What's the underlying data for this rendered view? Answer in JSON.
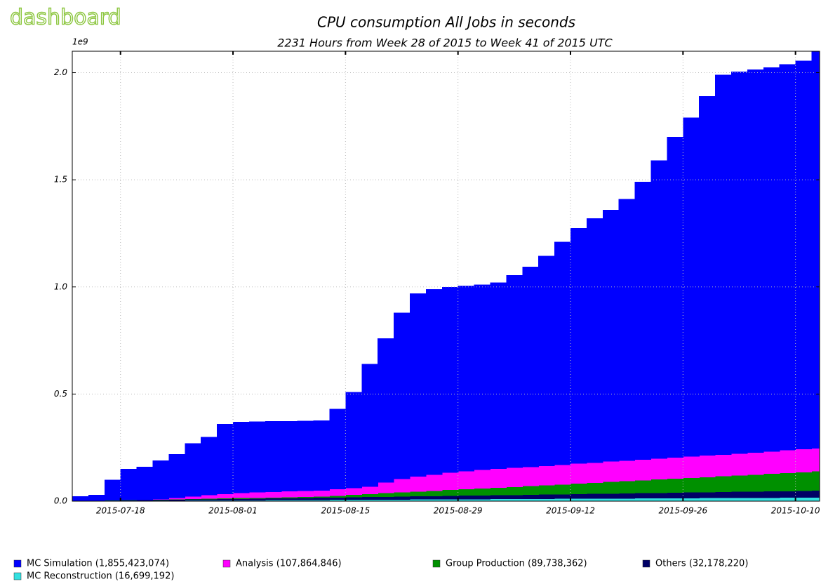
{
  "logo": "dashboard",
  "chart_data": {
    "type": "stacked_step_area",
    "title": "CPU consumption All Jobs in seconds",
    "subtitle": "2231 Hours from Week 28 of 2015 to Week 41 of 2015 UTC",
    "y_offset_label": "1e9",
    "x": [
      "2015-07-12",
      "2015-07-14",
      "2015-07-16",
      "2015-07-18",
      "2015-07-20",
      "2015-07-22",
      "2015-07-24",
      "2015-07-26",
      "2015-07-28",
      "2015-07-30",
      "2015-08-01",
      "2015-08-03",
      "2015-08-05",
      "2015-08-07",
      "2015-08-09",
      "2015-08-11",
      "2015-08-13",
      "2015-08-15",
      "2015-08-17",
      "2015-08-19",
      "2015-08-21",
      "2015-08-23",
      "2015-08-25",
      "2015-08-27",
      "2015-08-29",
      "2015-08-31",
      "2015-09-02",
      "2015-09-04",
      "2015-09-06",
      "2015-09-08",
      "2015-09-10",
      "2015-09-12",
      "2015-09-14",
      "2015-09-16",
      "2015-09-18",
      "2015-09-20",
      "2015-09-22",
      "2015-09-24",
      "2015-09-26",
      "2015-09-28",
      "2015-09-30",
      "2015-10-02",
      "2015-10-04",
      "2015-10-06",
      "2015-10-08",
      "2015-10-10",
      "2015-10-12"
    ],
    "xlim": [
      "2015-07-12",
      "2015-10-13"
    ],
    "xticks": [
      "2015-07-18",
      "2015-08-01",
      "2015-08-15",
      "2015-08-29",
      "2015-09-12",
      "2015-09-26",
      "2015-10-10"
    ],
    "ylim": [
      0,
      2.1
    ],
    "yticks": [
      {
        "value": 0,
        "label": "0.0"
      },
      0.5,
      {
        "value": 1,
        "label": "1.0"
      },
      1.5,
      {
        "value": 2,
        "label": "2.0"
      }
    ],
    "grid": true,
    "series": [
      {
        "name": "MC Simulation (1,855,423,074)",
        "color": "#0000ff",
        "values": [
          0.023,
          0.0286,
          0.0972,
          0.1458,
          0.1544,
          0.181,
          0.2056,
          0.2482,
          0.2728,
          0.3274,
          0.332,
          0.3316,
          0.3302,
          0.3288,
          0.3274,
          0.3261,
          0.375,
          0.45,
          0.5729,
          0.6729,
          0.7768,
          0.8552,
          0.8667,
          0.8681,
          0.8656,
          0.865,
          0.8694,
          0.8999,
          0.9353,
          0.9804,
          1.0405,
          1.1005,
          1.1407,
          1.1757,
          1.2209,
          1.2959,
          1.3911,
          1.4964,
          1.5815,
          1.6778,
          1.773,
          1.7832,
          1.7885,
          1.7936,
          1.8029,
          1.8131,
          1.855
        ]
      },
      {
        "name": "Analysis (107,864,846)",
        "color": "#ff00ff",
        "values": [
          0,
          0,
          0,
          0,
          0,
          0.002,
          0.006,
          0.012,
          0.016,
          0.02,
          0.024,
          0.025,
          0.026,
          0.027,
          0.028,
          0.029,
          0.03,
          0.031,
          0.034,
          0.05,
          0.062,
          0.07,
          0.075,
          0.08,
          0.084,
          0.086,
          0.088,
          0.089,
          0.09,
          0.091,
          0.092,
          0.093,
          0.094,
          0.095,
          0.096,
          0.097,
          0.098,
          0.099,
          0.1,
          0.1,
          0.101,
          0.102,
          0.103,
          0.104,
          0.106,
          0.107,
          0.1079
        ]
      },
      {
        "name": "Group Production (89,738,362)",
        "color": "#009000",
        "values": [
          0,
          0.0003,
          0.0007,
          0.001,
          0.0014,
          0.0017,
          0.002,
          0.0024,
          0.0027,
          0.0031,
          0.0034,
          0.0037,
          0.0041,
          0.0044,
          0.0048,
          0.005,
          0.008,
          0.011,
          0.014,
          0.017,
          0.02,
          0.0225,
          0.025,
          0.0275,
          0.03,
          0.0325,
          0.035,
          0.0375,
          0.04,
          0.0429,
          0.0457,
          0.0486,
          0.0514,
          0.0543,
          0.0571,
          0.06,
          0.0627,
          0.0654,
          0.0682,
          0.0709,
          0.0736,
          0.0763,
          0.079,
          0.0818,
          0.0845,
          0.0872,
          0.0897
        ]
      },
      {
        "name": "Others (32,178,220)",
        "color": "#000066",
        "values": [
          0,
          0.0007,
          0.0014,
          0.0021,
          0.0028,
          0.0035,
          0.0042,
          0.0049,
          0.0056,
          0.0063,
          0.007,
          0.0077,
          0.0084,
          0.0091,
          0.0098,
          0.0105,
          0.0112,
          0.0119,
          0.0126,
          0.0133,
          0.014,
          0.0147,
          0.0154,
          0.0161,
          0.0168,
          0.0175,
          0.0182,
          0.0189,
          0.0196,
          0.0203,
          0.021,
          0.0217,
          0.0224,
          0.0231,
          0.0238,
          0.0245,
          0.0252,
          0.0259,
          0.0266,
          0.0273,
          0.028,
          0.0287,
          0.0294,
          0.0301,
          0.0308,
          0.0315,
          0.0322
        ]
      },
      {
        "name": "MC Reconstruction (16,699,192)",
        "color": "#33e0e0",
        "values": [
          0,
          0.0004,
          0.0007,
          0.0011,
          0.0014,
          0.0018,
          0.0022,
          0.0025,
          0.0029,
          0.0032,
          0.0036,
          0.004,
          0.0043,
          0.0047,
          0.005,
          0.0054,
          0.0058,
          0.0061,
          0.0065,
          0.0068,
          0.0072,
          0.0076,
          0.0079,
          0.0083,
          0.0086,
          0.009,
          0.0094,
          0.0097,
          0.0101,
          0.0104,
          0.0108,
          0.0112,
          0.0115,
          0.0119,
          0.0122,
          0.0126,
          0.013,
          0.0133,
          0.0137,
          0.014,
          0.0144,
          0.0148,
          0.0151,
          0.0155,
          0.0158,
          0.0162,
          0.0167
        ]
      }
    ]
  }
}
